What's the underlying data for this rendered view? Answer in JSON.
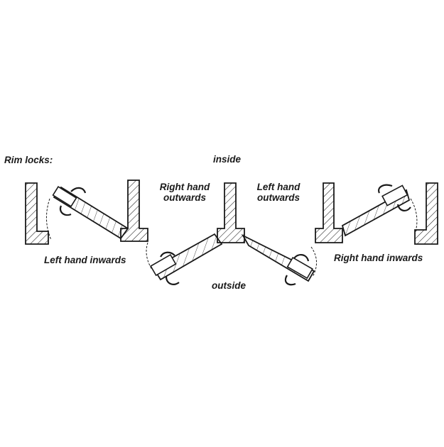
{
  "diagram": {
    "title": "Rim locks:",
    "labels": {
      "inside": "inside",
      "outside": "outside",
      "left_hand_inwards": "Left hand inwards",
      "right_hand_outwards_line1": "Right hand",
      "right_hand_outwards_line2": "outwards",
      "left_hand_outwards_line1": "Left hand",
      "left_hand_outwards_line2": "outwards",
      "right_hand_inwards": "Right hand inwards"
    },
    "colors": {
      "ink": "#1a1a1a",
      "background": "#ffffff"
    }
  }
}
